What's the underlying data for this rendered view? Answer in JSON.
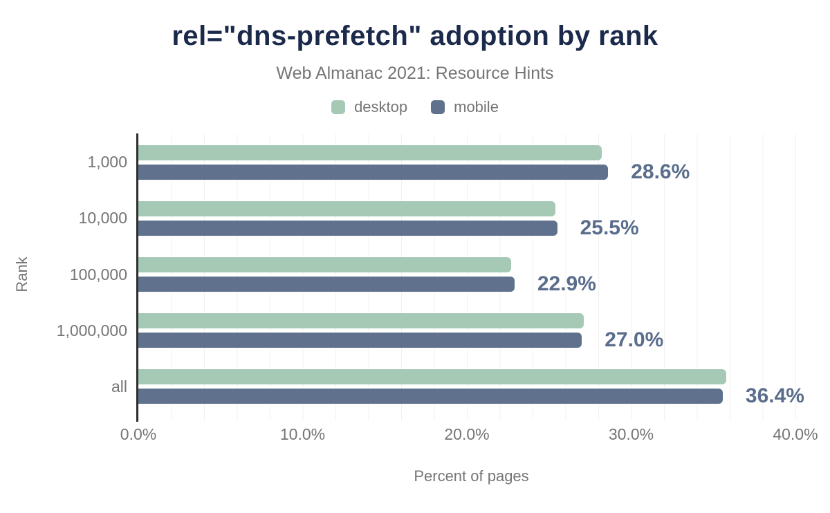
{
  "chart": {
    "title": "rel=\"dns-prefetch\" adoption by rank",
    "subtitle": "Web Almanac 2021: Resource Hints",
    "legend": [
      {
        "label": "desktop",
        "color": "#a6c9b6"
      },
      {
        "label": "mobile",
        "color": "#5f718c"
      }
    ],
    "ylabel": "Rank",
    "xlabel": "Percent of pages",
    "x_ticks": [
      "0.0%",
      "10.0%",
      "20.0%",
      "30.0%",
      "40.0%"
    ]
  },
  "chart_data": {
    "type": "bar",
    "orientation": "horizontal",
    "title": "rel=\"dns-prefetch\" adoption by rank",
    "subtitle": "Web Almanac 2021: Resource Hints",
    "categories": [
      "1,000",
      "10,000",
      "100,000",
      "1,000,000",
      "all"
    ],
    "series": [
      {
        "name": "desktop",
        "color": "#a6c9b6",
        "values": [
          28.2,
          25.4,
          22.7,
          27.1,
          35.8
        ]
      },
      {
        "name": "mobile",
        "color": "#5f718c",
        "values": [
          28.6,
          25.5,
          22.9,
          27.0,
          36.4
        ]
      }
    ],
    "data_labels": [
      "28.6%",
      "25.5%",
      "22.9%",
      "27.0%",
      "36.4%"
    ],
    "data_labels_series": "mobile",
    "xlabel": "Percent of pages",
    "ylabel": "Rank",
    "xlim": [
      0,
      40.55
    ],
    "x_tick_interval": 10,
    "minor_grid_interval": 2,
    "grid": "vertical-minor",
    "legend_position": "top"
  },
  "colors": {
    "title": "#1b2a4a",
    "text_muted": "#757575",
    "desktop": "#a6c9b6",
    "mobile": "#5f718c",
    "data_label": "#5a6e8c",
    "axis_line": "#2f2f2f",
    "gridline": "#f1f1f1",
    "background": "#ffffff"
  }
}
